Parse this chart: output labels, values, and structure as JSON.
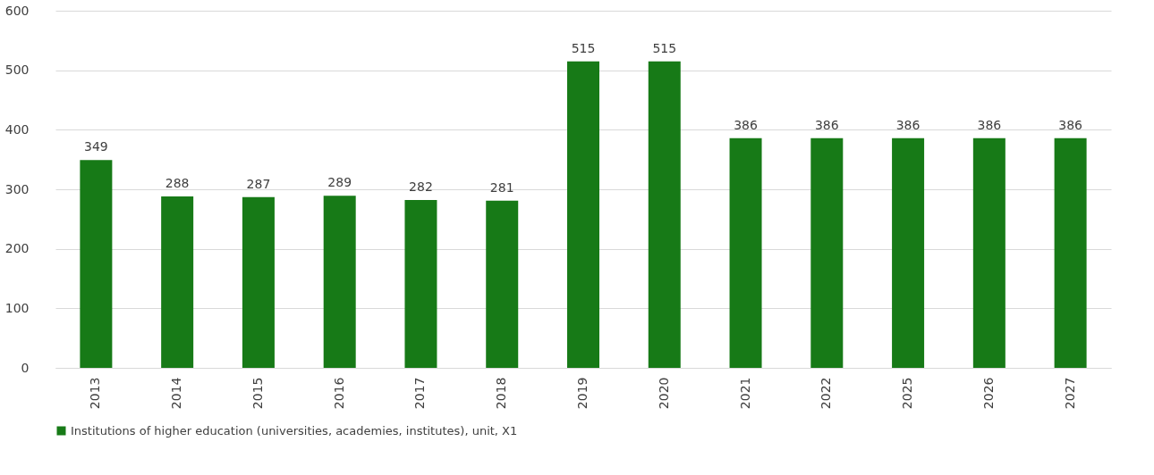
{
  "chart_data": {
    "type": "bar",
    "categories": [
      "2013",
      "2014",
      "2015",
      "2016",
      "2017",
      "2018",
      "2019",
      "2020",
      "2021",
      "2022",
      "2025",
      "2026",
      "2027"
    ],
    "series": [
      {
        "name": "Institutions of higher education (universities, academies, institutes), unit, X1",
        "color": "#177a17",
        "values": [
          349,
          288,
          287,
          289,
          282,
          281,
          515,
          515,
          386,
          386,
          386,
          386,
          386
        ]
      }
    ],
    "ylim": [
      0,
      600
    ],
    "yticks": [
      0,
      100,
      200,
      300,
      400,
      500,
      600
    ],
    "grid": "y",
    "legend": "bottom",
    "data_labels": true
  }
}
